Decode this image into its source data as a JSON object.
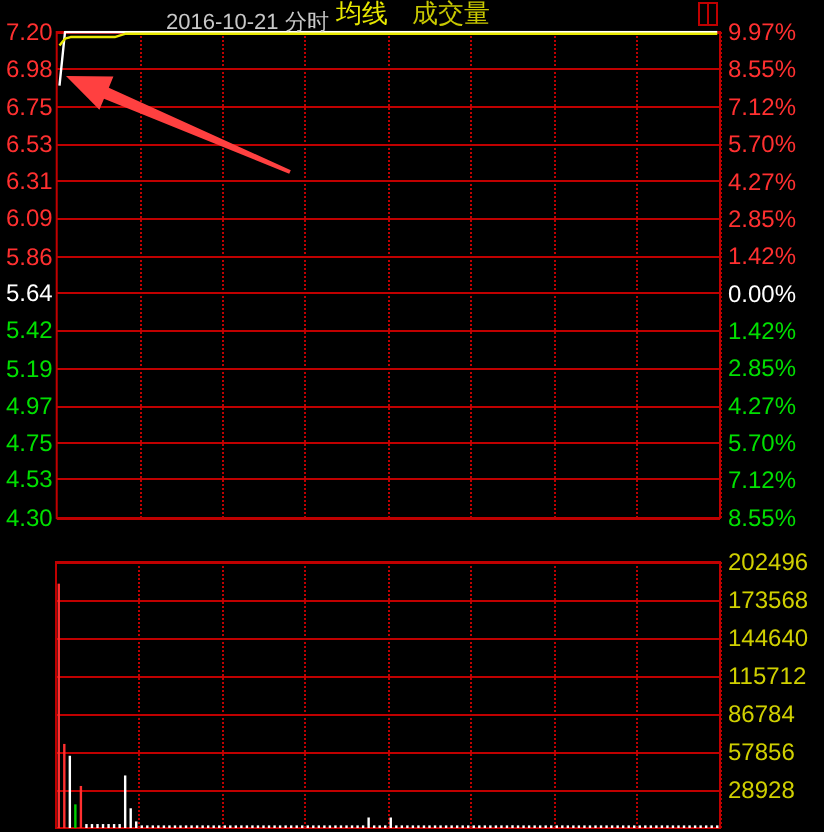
{
  "chart_data": [
    {
      "type": "line",
      "title": "2016-10-21 分时",
      "annotations": [
        "成交量"
      ],
      "grid": true,
      "tick_labels": "y",
      "categories": [
        null,
        null,
        null,
        null,
        null,
        null,
        null,
        null,
        null,
        null,
        null,
        null,
        null,
        null,
        null,
        null,
        null,
        null,
        null,
        null,
        null,
        null,
        null,
        null,
        null,
        null,
        null,
        null,
        null,
        null,
        null,
        null,
        null,
        null,
        null,
        null,
        null,
        null,
        null,
        null,
        null,
        null,
        null,
        null,
        null,
        null,
        null,
        null,
        null,
        null,
        null,
        null,
        null,
        null,
        null,
        null,
        null,
        null,
        null,
        null,
        null,
        null,
        null,
        null,
        null,
        null,
        null,
        null,
        null,
        null,
        null,
        null,
        null,
        null,
        null,
        null,
        null,
        null,
        null,
        null,
        null,
        null,
        null,
        null,
        null,
        null,
        null,
        null,
        null,
        null,
        null,
        null,
        null,
        null,
        null,
        null,
        null,
        null,
        null,
        null,
        null,
        null,
        null,
        null,
        null,
        null,
        null,
        null,
        null,
        null,
        null,
        null,
        null,
        null,
        null,
        null,
        null,
        null,
        null,
        null
      ],
      "ylim": [
        4.3,
        7.2
      ],
      "yticks": [
        {
          "value": 7.2,
          "label": "7.20"
        },
        6.98,
        6.75,
        6.53,
        6.31,
        6.09,
        5.86,
        5.64,
        5.42,
        5.19,
        4.97,
        4.75,
        4.53,
        {
          "value": 4.3,
          "label": "4.30"
        }
      ],
      "y2lim": [
        -8.55,
        9.97
      ],
      "y2ticks": [
        {
          "value": 9.97,
          "label": "9.97%"
        },
        {
          "value": 8.55,
          "label": "8.55%"
        },
        {
          "value": 7.12,
          "label": "7.12%"
        },
        {
          "value": 5.7,
          "label": "5.70%"
        },
        {
          "value": 4.27,
          "label": "4.27%"
        },
        {
          "value": 2.85,
          "label": "2.85%"
        },
        {
          "value": 1.42,
          "label": "1.42%"
        },
        {
          "value": 0,
          "label": "0.00%"
        },
        {
          "value": -1.42,
          "label": "1.42%"
        },
        {
          "value": -2.85,
          "label": "2.85%"
        },
        {
          "value": -4.27,
          "label": "4.27%"
        },
        {
          "value": -5.7,
          "label": "5.70%"
        },
        {
          "value": -7.12,
          "label": "7.12%"
        },
        {
          "value": -8.55,
          "label": "8.55%"
        }
      ],
      "series": [
        {
          "color": "#ffffff",
          "values": [
            6.88,
            7.2,
            7.2,
            7.2,
            7.2,
            7.2,
            7.2,
            7.2,
            7.2,
            7.2,
            7.2,
            7.2,
            7.2,
            7.2,
            7.2,
            7.2,
            7.2,
            7.2,
            7.2,
            7.2,
            7.2,
            7.2,
            7.2,
            7.2,
            7.2,
            7.2,
            7.2,
            7.2,
            7.2,
            7.2,
            7.2,
            7.2,
            7.2,
            7.2,
            7.2,
            7.2,
            7.2,
            7.2,
            7.2,
            7.2,
            7.2,
            7.2,
            7.2,
            7.2,
            7.2,
            7.2,
            7.2,
            7.2,
            7.2,
            7.2,
            7.2,
            7.2,
            7.2,
            7.2,
            7.2,
            7.2,
            7.2,
            7.2,
            7.2,
            7.2,
            7.2,
            7.2,
            7.2,
            7.2,
            7.2,
            7.2,
            7.2,
            7.2,
            7.2,
            7.2,
            7.2,
            7.2,
            7.2,
            7.2,
            7.2,
            7.2,
            7.2,
            7.2,
            7.2,
            7.2,
            7.2,
            7.2,
            7.2,
            7.2,
            7.2,
            7.2,
            7.2,
            7.2,
            7.2,
            7.2,
            7.2,
            7.2,
            7.2,
            7.2,
            7.2,
            7.2,
            7.2,
            7.2,
            7.2,
            7.2,
            7.2,
            7.2,
            7.2,
            7.2,
            7.2,
            7.2,
            7.2,
            7.2,
            7.2,
            7.2,
            7.2,
            7.2,
            7.2,
            7.2,
            7.2,
            7.2,
            7.2,
            7.2,
            7.2,
            7.2
          ]
        },
        {
          "name": "均线",
          "color": "#e8e800",
          "values": [
            7.12,
            7.16,
            7.17,
            7.17,
            7.17,
            7.17,
            7.17,
            7.17,
            7.17,
            7.17,
            7.17,
            7.18,
            7.19,
            7.19,
            7.19,
            7.19,
            7.19,
            7.19,
            7.19,
            7.19,
            7.19,
            7.19,
            7.19,
            7.19,
            7.19,
            7.19,
            7.19,
            7.19,
            7.19,
            7.19,
            7.19,
            7.19,
            7.19,
            7.19,
            7.19,
            7.19,
            7.19,
            7.19,
            7.19,
            7.19,
            7.19,
            7.19,
            7.19,
            7.19,
            7.19,
            7.19,
            7.19,
            7.19,
            7.19,
            7.19,
            7.19,
            7.19,
            7.19,
            7.19,
            7.19,
            7.19,
            7.19,
            7.19,
            7.19,
            7.19,
            7.19,
            7.19,
            7.19,
            7.19,
            7.19,
            7.19,
            7.19,
            7.19,
            7.19,
            7.19,
            7.19,
            7.19,
            7.19,
            7.19,
            7.19,
            7.19,
            7.19,
            7.19,
            7.19,
            7.19,
            7.19,
            7.19,
            7.19,
            7.19,
            7.19,
            7.19,
            7.19,
            7.19,
            7.19,
            7.19,
            7.19,
            7.19,
            7.19,
            7.19,
            7.19,
            7.19,
            7.19,
            7.19,
            7.19,
            7.19,
            7.19,
            7.19,
            7.19,
            7.19,
            7.19,
            7.19,
            7.19,
            7.19,
            7.19,
            7.19,
            7.19,
            7.19,
            7.19,
            7.19,
            7.19,
            7.19,
            7.19,
            7.19,
            7.19,
            7.19
          ]
        }
      ]
    },
    {
      "type": "bar",
      "grid": true,
      "tick_labels": "y",
      "categories": [
        null,
        null,
        null,
        null,
        null,
        null,
        null,
        null,
        null,
        null,
        null,
        null,
        null,
        null,
        null,
        null,
        null,
        null,
        null,
        null,
        null,
        null,
        null,
        null,
        null,
        null,
        null,
        null,
        null,
        null,
        null,
        null,
        null,
        null,
        null,
        null,
        null,
        null,
        null,
        null,
        null,
        null,
        null,
        null,
        null,
        null,
        null,
        null,
        null,
        null,
        null,
        null,
        null,
        null,
        null,
        null,
        null,
        null,
        null,
        null,
        null,
        null,
        null,
        null,
        null,
        null,
        null,
        null,
        null,
        null,
        null,
        null,
        null,
        null,
        null,
        null,
        null,
        null,
        null,
        null,
        null,
        null,
        null,
        null,
        null,
        null,
        null,
        null,
        null,
        null,
        null,
        null,
        null,
        null,
        null,
        null,
        null,
        null,
        null,
        null,
        null,
        null,
        null,
        null,
        null,
        null,
        null,
        null,
        null,
        null,
        null,
        null,
        null,
        null,
        null,
        null,
        null,
        null,
        null,
        null
      ],
      "ylim": [
        0,
        202496
      ],
      "yticks": [
        28928,
        57856,
        86784,
        115712,
        144640,
        173568,
        202496
      ],
      "values": [
        186000,
        64000,
        55000,
        18000,
        32000,
        3000,
        3000,
        3000,
        3000,
        3000,
        3000,
        3000,
        40000,
        15000,
        5000,
        2000,
        2000,
        2000,
        2000,
        2000,
        2000,
        2000,
        2000,
        2000,
        2000,
        2000,
        2000,
        2000,
        2000,
        2000,
        2000,
        2000,
        2000,
        2000,
        2000,
        2000,
        2000,
        2000,
        2000,
        2000,
        2000,
        2000,
        2000,
        2000,
        2000,
        2000,
        2000,
        2000,
        2000,
        2000,
        2000,
        2000,
        2000,
        2000,
        2000,
        2000,
        8000,
        2000,
        2000,
        2000,
        8000,
        2000,
        2000,
        2000,
        2000,
        2000,
        2000,
        2000,
        2000,
        2000,
        2000,
        2000,
        2000,
        2000,
        2000,
        2000,
        2000,
        2000,
        2000,
        2000,
        2000,
        2000,
        2000,
        2000,
        2000,
        2000,
        2000,
        2000,
        2000,
        2000,
        2000,
        2000,
        2000,
        2000,
        2000,
        2000,
        2000,
        2000,
        2000,
        2000,
        2000,
        2000,
        2000,
        2000,
        2000,
        2000,
        2000,
        2000,
        2000,
        2000,
        2000,
        2000,
        2000,
        2000,
        2000,
        2000,
        2000,
        2000,
        2000,
        2000
      ],
      "colors": [
        "#ff3030",
        "#ff3030",
        "#ffffff",
        "#00d000",
        "#ff3030",
        "#ffffff",
        "#ffffff",
        "#ffffff",
        "#ffffff",
        "#ffffff",
        "#ffffff",
        "#ffffff",
        "#ffffff",
        "#ffffff",
        "#ffffff",
        "#ffffff",
        "#ffffff",
        "#ffffff",
        "#ffffff",
        "#ffffff",
        "#ffffff",
        "#ffffff",
        "#ffffff",
        "#ffffff",
        "#ffffff",
        "#ffffff",
        "#ffffff",
        "#ffffff",
        "#ffffff",
        "#ffffff",
        "#ffffff",
        "#ffffff",
        "#ffffff",
        "#ffffff",
        "#ffffff",
        "#ffffff",
        "#ffffff",
        "#ffffff",
        "#ffffff",
        "#ffffff",
        "#ffffff",
        "#ffffff",
        "#ffffff",
        "#ffffff",
        "#ffffff",
        "#ffffff",
        "#ffffff",
        "#ffffff",
        "#ffffff",
        "#ffffff",
        "#ffffff",
        "#ffffff",
        "#ffffff",
        "#ffffff",
        "#ffffff",
        "#ffffff",
        "#ffffff",
        "#ffffff",
        "#ffffff",
        "#ffffff",
        "#ffffff",
        "#ffffff",
        "#ffffff",
        "#ffffff",
        "#ffffff",
        "#ffffff",
        "#ffffff",
        "#ffffff",
        "#ffffff",
        "#ffffff",
        "#ffffff",
        "#ffffff",
        "#ffffff",
        "#ffffff",
        "#ffffff",
        "#ffffff",
        "#ffffff",
        "#ffffff",
        "#ffffff",
        "#ffffff",
        "#ffffff",
        "#ffffff",
        "#ffffff",
        "#ffffff",
        "#ffffff",
        "#ffffff",
        "#ffffff",
        "#ffffff",
        "#ffffff",
        "#ffffff",
        "#ffffff",
        "#ffffff",
        "#ffffff",
        "#ffffff",
        "#ffffff",
        "#ffffff",
        "#ffffff",
        "#ffffff",
        "#ffffff",
        "#ffffff",
        "#ffffff",
        "#ffffff",
        "#ffffff",
        "#ffffff",
        "#ffffff",
        "#ffffff",
        "#ffffff",
        "#ffffff",
        "#ffffff",
        "#ffffff",
        "#ffffff",
        "#ffffff",
        "#ffffff",
        "#ffffff",
        "#ffffff",
        "#ffffff",
        "#ffffff",
        "#ffffff",
        "#ffffff",
        "#ffffff"
      ]
    }
  ]
}
